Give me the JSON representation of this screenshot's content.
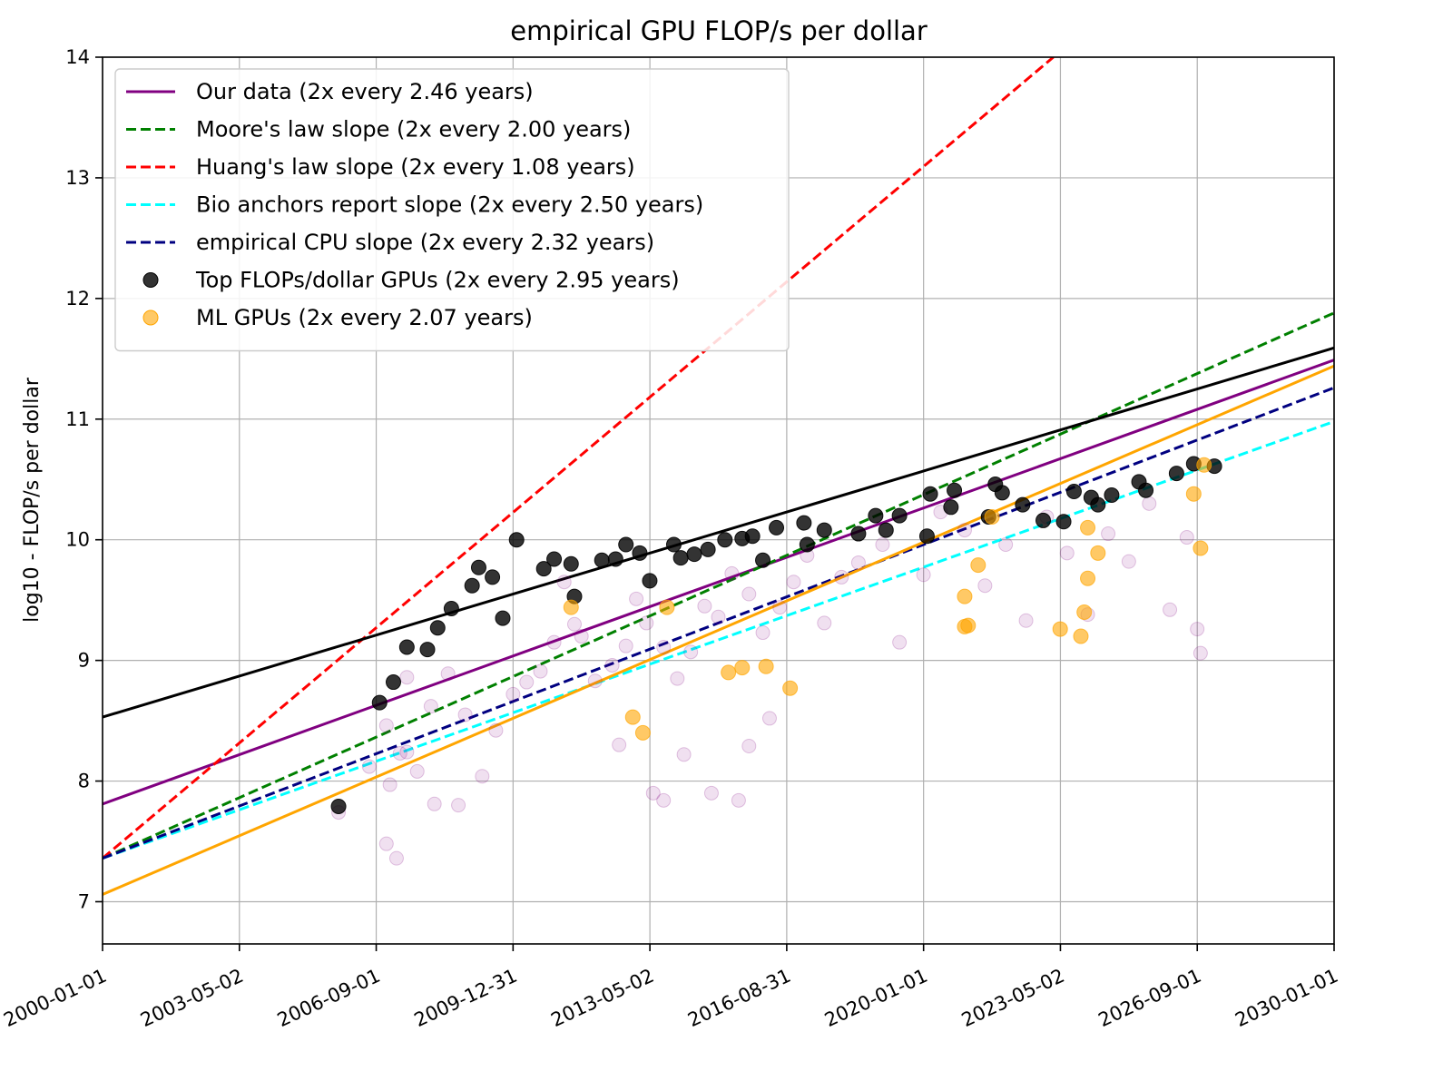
{
  "chart_data": {
    "type": "scatter",
    "title": "empirical GPU FLOP/s per dollar",
    "xlabel": "",
    "ylabel": "log10 - FLOP/s per dollar",
    "xlim": [
      "2000-01-01",
      "2030-01-01"
    ],
    "ylim": [
      6.65,
      14
    ],
    "x_tick_labels": [
      "2000-01-01",
      "2003-05-02",
      "2006-09-01",
      "2009-12-31",
      "2013-05-02",
      "2016-08-31",
      "2020-01-01",
      "2023-05-02",
      "2026-09-01",
      "2030-01-01"
    ],
    "y_ticks": [
      7,
      8,
      9,
      10,
      11,
      12,
      13,
      14
    ],
    "grid": true,
    "legend_position": "top-left",
    "lines": [
      {
        "name": "Our data (2x every 2.46 years)",
        "color": "#800080",
        "style": "solid",
        "points": [
          [
            "2000-01-01",
            7.81
          ],
          [
            "2030-01-01",
            11.49
          ]
        ]
      },
      {
        "name": "Moore's law slope (2x every 2.00 years)",
        "color": "#008000",
        "style": "dashed",
        "points": [
          [
            "2000-01-01",
            7.36
          ],
          [
            "2030-01-01",
            11.88
          ]
        ]
      },
      {
        "name": "Huang's law slope (2x every 1.08 years)",
        "color": "#ff0000",
        "style": "dashed",
        "points": [
          [
            "2000-01-01",
            7.36
          ],
          [
            "2023-03-01",
            14.0
          ]
        ]
      },
      {
        "name": "Bio anchors report slope (2x every 2.50 years)",
        "color": "#00ffff",
        "style": "dashed",
        "points": [
          [
            "2000-01-01",
            7.36
          ],
          [
            "2030-01-01",
            10.98
          ]
        ]
      },
      {
        "name": "empirical CPU slope (2x every 2.32 years)",
        "color": "#000080",
        "style": "dashed",
        "points": [
          [
            "2000-01-01",
            7.36
          ],
          [
            "2030-01-01",
            11.26
          ]
        ]
      },
      {
        "name": "",
        "color": "#000000",
        "style": "solid",
        "points": [
          [
            "2000-01-01",
            8.53
          ],
          [
            "2030-01-01",
            11.59
          ]
        ]
      },
      {
        "name": "",
        "color": "#ffa500",
        "style": "solid",
        "points": [
          [
            "2000-01-01",
            7.06
          ],
          [
            "2030-01-01",
            11.44
          ]
        ]
      }
    ],
    "scatter_series": [
      {
        "name": "Top FLOPs/dollar GPUs (2x every 2.95 years)",
        "color": "#000000",
        "opacity": 0.8,
        "radius": 8,
        "legend": true,
        "points": [
          [
            "2005-10-01",
            7.79
          ],
          [
            "2006-10-01",
            8.65
          ],
          [
            "2007-02-01",
            8.82
          ],
          [
            "2007-06-01",
            9.11
          ],
          [
            "2007-12-01",
            9.09
          ],
          [
            "2008-03-01",
            9.27
          ],
          [
            "2008-07-01",
            9.43
          ],
          [
            "2009-01-01",
            9.62
          ],
          [
            "2009-03-01",
            9.77
          ],
          [
            "2009-07-01",
            9.69
          ],
          [
            "2009-10-01",
            9.35
          ],
          [
            "2010-02-01",
            10.0
          ],
          [
            "2010-10-01",
            9.76
          ],
          [
            "2011-01-01",
            9.84
          ],
          [
            "2011-06-01",
            9.8
          ],
          [
            "2011-07-01",
            9.53
          ],
          [
            "2012-03-01",
            9.83
          ],
          [
            "2012-07-01",
            9.84
          ],
          [
            "2012-10-01",
            9.96
          ],
          [
            "2013-02-01",
            9.89
          ],
          [
            "2013-05-01",
            9.66
          ],
          [
            "2013-12-01",
            9.96
          ],
          [
            "2014-02-01",
            9.85
          ],
          [
            "2014-06-01",
            9.88
          ],
          [
            "2014-10-01",
            9.92
          ],
          [
            "2015-03-01",
            10.0
          ],
          [
            "2015-08-01",
            10.01
          ],
          [
            "2015-11-01",
            10.03
          ],
          [
            "2016-02-01",
            9.83
          ],
          [
            "2016-06-01",
            10.1
          ],
          [
            "2017-02-01",
            10.14
          ],
          [
            "2017-03-01",
            9.96
          ],
          [
            "2017-08-01",
            10.08
          ],
          [
            "2018-06-01",
            10.05
          ],
          [
            "2018-11-01",
            10.2
          ],
          [
            "2019-02-01",
            10.08
          ],
          [
            "2019-06-01",
            10.2
          ],
          [
            "2020-02-01",
            10.03
          ],
          [
            "2020-03-01",
            10.38
          ],
          [
            "2020-09-01",
            10.27
          ],
          [
            "2020-10-01",
            10.41
          ],
          [
            "2021-08-01",
            10.19
          ],
          [
            "2021-10-01",
            10.46
          ],
          [
            "2021-12-01",
            10.39
          ],
          [
            "2022-06-01",
            10.29
          ],
          [
            "2022-12-01",
            10.16
          ],
          [
            "2023-06-01",
            10.15
          ],
          [
            "2023-09-01",
            10.4
          ],
          [
            "2024-02-01",
            10.35
          ],
          [
            "2024-04-01",
            10.29
          ],
          [
            "2024-08-01",
            10.37
          ],
          [
            "2025-04-01",
            10.48
          ],
          [
            "2025-06-01",
            10.41
          ],
          [
            "2026-03-01",
            10.55
          ],
          [
            "2026-08-01",
            10.63
          ],
          [
            "2027-02-01",
            10.61
          ]
        ]
      },
      {
        "name": "ML GPUs (2x every 2.07 years)",
        "color": "#ffa500",
        "opacity": 0.6,
        "radius": 8,
        "legend": true,
        "points": [
          [
            "2011-06-01",
            9.44
          ],
          [
            "2013-10-01",
            9.44
          ],
          [
            "2012-12-01",
            8.53
          ],
          [
            "2013-03-01",
            8.4
          ],
          [
            "2015-04-01",
            8.9
          ],
          [
            "2015-08-01",
            8.94
          ],
          [
            "2016-03-01",
            8.95
          ],
          [
            "2016-10-01",
            8.77
          ],
          [
            "2021-01-01",
            9.28
          ],
          [
            "2021-02-01",
            9.29
          ],
          [
            "2021-01-01",
            9.53
          ],
          [
            "2021-05-01",
            9.79
          ],
          [
            "2021-09-01",
            10.19
          ],
          [
            "2023-05-01",
            9.26
          ],
          [
            "2023-11-01",
            9.2
          ],
          [
            "2023-12-01",
            9.4
          ],
          [
            "2024-04-01",
            9.89
          ],
          [
            "2024-01-01",
            9.68
          ],
          [
            "2024-01-01",
            10.1
          ],
          [
            "2026-08-01",
            10.38
          ],
          [
            "2026-10-01",
            9.93
          ],
          [
            "2026-11-01",
            10.62
          ]
        ]
      },
      {
        "name": "",
        "color": "#800080",
        "opacity": 0.12,
        "radius": 7.5,
        "legend": false,
        "points": [
          [
            "2005-10-01",
            7.74
          ],
          [
            "2006-07-01",
            8.12
          ],
          [
            "2006-12-01",
            8.46
          ],
          [
            "2007-04-01",
            8.23
          ],
          [
            "2007-06-01",
            8.86
          ],
          [
            "2007-09-01",
            8.08
          ],
          [
            "2008-01-01",
            8.62
          ],
          [
            "2008-06-01",
            8.89
          ],
          [
            "2008-11-01",
            8.55
          ],
          [
            "2009-04-01",
            8.04
          ],
          [
            "2009-08-01",
            8.42
          ],
          [
            "2010-01-01",
            8.72
          ],
          [
            "2010-05-01",
            8.82
          ],
          [
            "2010-09-01",
            8.91
          ],
          [
            "2011-01-01",
            9.15
          ],
          [
            "2011-04-01",
            9.65
          ],
          [
            "2011-07-01",
            9.3
          ],
          [
            "2011-09-01",
            9.2
          ],
          [
            "2012-01-01",
            8.83
          ],
          [
            "2012-06-01",
            8.96
          ],
          [
            "2012-10-01",
            9.12
          ],
          [
            "2013-01-01",
            9.51
          ],
          [
            "2013-04-01",
            9.31
          ],
          [
            "2013-09-01",
            9.11
          ],
          [
            "2014-01-01",
            8.85
          ],
          [
            "2014-05-01",
            9.07
          ],
          [
            "2014-09-01",
            9.45
          ],
          [
            "2015-01-01",
            9.36
          ],
          [
            "2015-05-01",
            9.72
          ],
          [
            "2015-10-01",
            9.55
          ],
          [
            "2016-02-01",
            9.23
          ],
          [
            "2016-07-01",
            9.44
          ],
          [
            "2016-11-01",
            9.65
          ],
          [
            "2017-03-01",
            9.87
          ],
          [
            "2017-08-01",
            9.31
          ],
          [
            "2018-01-01",
            9.69
          ],
          [
            "2018-06-01",
            9.81
          ],
          [
            "2019-01-01",
            9.96
          ],
          [
            "2019-06-01",
            9.15
          ],
          [
            "2020-01-01",
            9.71
          ],
          [
            "2020-06-01",
            10.23
          ],
          [
            "2021-01-01",
            10.08
          ],
          [
            "2021-07-01",
            9.62
          ],
          [
            "2022-01-01",
            9.96
          ],
          [
            "2022-07-01",
            9.33
          ],
          [
            "2023-01-01",
            10.19
          ],
          [
            "2023-07-01",
            9.89
          ],
          [
            "2024-01-01",
            9.38
          ],
          [
            "2024-07-01",
            10.05
          ],
          [
            "2025-01-01",
            9.82
          ],
          [
            "2025-07-01",
            10.3
          ],
          [
            "2026-01-01",
            9.42
          ],
          [
            "2026-06-01",
            10.02
          ],
          [
            "2026-09-01",
            9.26
          ],
          [
            "2026-10-01",
            9.06
          ],
          [
            "2012-08-01",
            8.3
          ],
          [
            "2013-06-01",
            7.9
          ],
          [
            "2014-03-01",
            8.22
          ],
          [
            "2015-10-01",
            8.29
          ],
          [
            "2016-04-01",
            8.52
          ],
          [
            "2008-02-01",
            7.81
          ],
          [
            "2007-03-01",
            7.36
          ],
          [
            "2006-12-01",
            7.48
          ],
          [
            "2007-01-01",
            7.97
          ],
          [
            "2007-06-01",
            8.24
          ],
          [
            "2008-09-01",
            7.8
          ],
          [
            "2013-09-01",
            7.84
          ],
          [
            "2015-07-01",
            7.84
          ],
          [
            "2014-11-01",
            7.9
          ]
        ]
      }
    ]
  }
}
